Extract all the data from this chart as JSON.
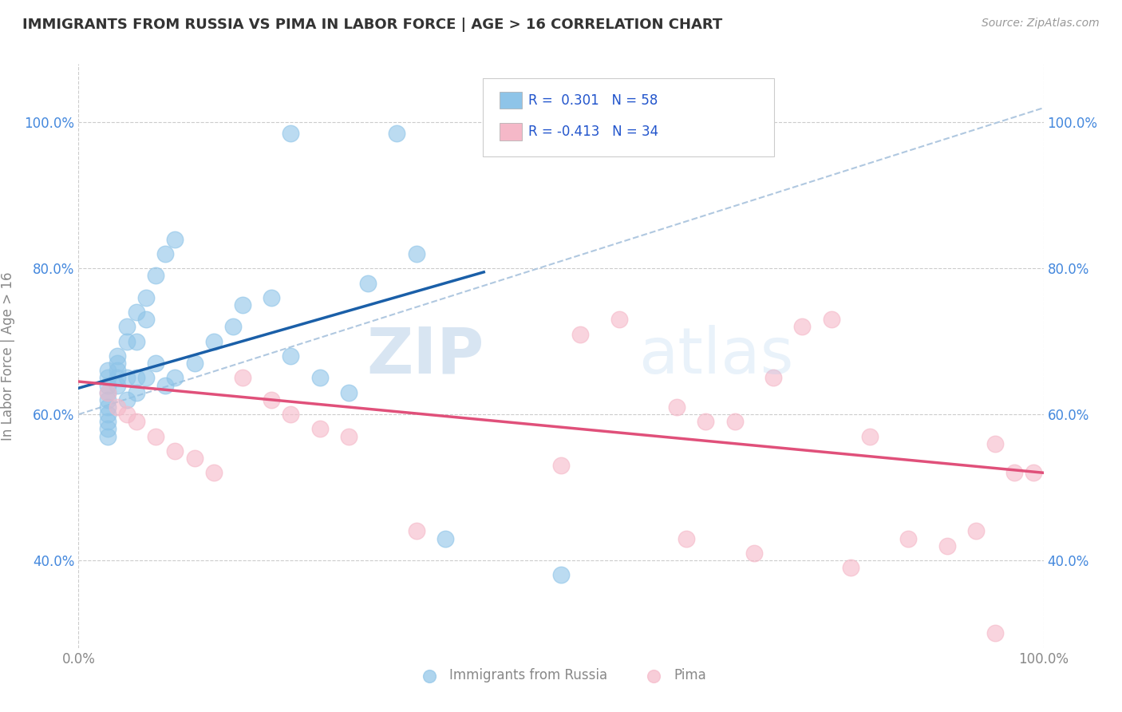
{
  "title": "IMMIGRANTS FROM RUSSIA VS PIMA IN LABOR FORCE | AGE > 16 CORRELATION CHART",
  "source_text": "Source: ZipAtlas.com",
  "ylabel": "In Labor Force | Age > 16",
  "xlim": [
    0.0,
    1.0
  ],
  "ylim": [
    0.28,
    1.08
  ],
  "yticks": [
    0.4,
    0.6,
    0.8,
    1.0
  ],
  "watermark_zip": "ZIP",
  "watermark_atlas": "atlas",
  "blue_scatter_x": [
    0.22,
    0.33,
    0.03,
    0.03,
    0.03,
    0.03,
    0.03,
    0.03,
    0.03,
    0.03,
    0.03,
    0.03,
    0.04,
    0.04,
    0.04,
    0.04,
    0.04,
    0.05,
    0.05,
    0.05,
    0.05,
    0.06,
    0.06,
    0.06,
    0.06,
    0.07,
    0.07,
    0.07,
    0.08,
    0.08,
    0.09,
    0.09,
    0.1,
    0.1,
    0.12,
    0.14,
    0.16,
    0.17,
    0.2,
    0.22,
    0.25,
    0.28,
    0.3,
    0.35,
    0.38,
    0.5
  ],
  "blue_scatter_y": [
    0.985,
    0.985,
    0.66,
    0.65,
    0.64,
    0.63,
    0.62,
    0.61,
    0.6,
    0.59,
    0.58,
    0.57,
    0.68,
    0.67,
    0.66,
    0.65,
    0.64,
    0.72,
    0.7,
    0.65,
    0.62,
    0.74,
    0.7,
    0.65,
    0.63,
    0.76,
    0.73,
    0.65,
    0.79,
    0.67,
    0.82,
    0.64,
    0.84,
    0.65,
    0.67,
    0.7,
    0.72,
    0.75,
    0.76,
    0.68,
    0.65,
    0.63,
    0.78,
    0.82,
    0.43,
    0.38
  ],
  "pink_scatter_x": [
    0.03,
    0.04,
    0.05,
    0.06,
    0.08,
    0.1,
    0.12,
    0.14,
    0.17,
    0.2,
    0.22,
    0.25,
    0.28,
    0.35,
    0.5,
    0.52,
    0.56,
    0.62,
    0.68,
    0.72,
    0.75,
    0.78,
    0.82,
    0.86,
    0.9,
    0.93,
    0.95,
    0.97,
    0.99,
    0.63,
    0.65,
    0.7,
    0.8,
    0.95
  ],
  "pink_scatter_y": [
    0.63,
    0.61,
    0.6,
    0.59,
    0.57,
    0.55,
    0.54,
    0.52,
    0.65,
    0.62,
    0.6,
    0.58,
    0.57,
    0.44,
    0.53,
    0.71,
    0.73,
    0.61,
    0.59,
    0.65,
    0.72,
    0.73,
    0.57,
    0.43,
    0.42,
    0.44,
    0.56,
    0.52,
    0.52,
    0.43,
    0.59,
    0.41,
    0.39,
    0.3
  ],
  "blue_line_x": [
    0.0,
    0.42
  ],
  "blue_line_y": [
    0.636,
    0.795
  ],
  "pink_line_x": [
    0.0,
    1.0
  ],
  "pink_line_y": [
    0.645,
    0.52
  ],
  "dashed_line_x": [
    0.0,
    1.0
  ],
  "dashed_line_y": [
    0.6,
    1.02
  ],
  "blue_color": "#8ec4e8",
  "pink_color": "#f5b8c8",
  "blue_line_color": "#1a5fa8",
  "pink_line_color": "#e0507a",
  "dashed_color": "#b0c8e0",
  "bg_color": "#ffffff",
  "grid_color": "#cccccc",
  "title_color": "#333333",
  "tick_color_blue": "#4488dd",
  "tick_color_gray": "#888888",
  "legend_text_color": "#2255cc"
}
